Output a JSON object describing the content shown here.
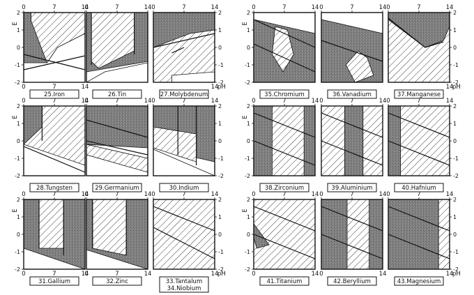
{
  "axis_text": {
    "e": "E",
    "ph": "pH"
  },
  "panels": [
    {
      "id": "25",
      "label": "25.Iron",
      "top_ticks": [
        "0",
        "7",
        "14"
      ],
      "bottom_ticks": [
        "0",
        "7",
        "14"
      ],
      "left_ticks": [
        "2",
        "1",
        "0",
        "-1",
        "-2"
      ],
      "right_ticks": [],
      "show_e": true,
      "show_ph": false
    },
    {
      "id": "26",
      "label": "26.Tin",
      "top_ticks": [
        "0",
        "7",
        "14"
      ],
      "bottom_ticks": [],
      "left_ticks": [],
      "right_ticks": [],
      "show_e": false,
      "show_ph": false
    },
    {
      "id": "27",
      "label": "27.Molybdenum",
      "top_ticks": [
        "0",
        "7",
        "14"
      ],
      "bottom_ticks": [
        "14"
      ],
      "left_ticks": [],
      "right_ticks": [
        "2",
        "1",
        "0",
        "-1",
        "-2"
      ],
      "show_e": false,
      "show_ph": true
    },
    {
      "id": "35",
      "label": "35.Chromium",
      "top_ticks": [
        "0",
        "7",
        "14"
      ],
      "bottom_ticks": [],
      "left_ticks": [
        "2",
        "1",
        "0",
        "-1",
        "-2"
      ],
      "right_ticks": [],
      "show_e": true,
      "show_ph": false
    },
    {
      "id": "36",
      "label": "36.Vanadium",
      "top_ticks": [
        "0",
        "7",
        "14"
      ],
      "bottom_ticks": [],
      "left_ticks": [],
      "right_ticks": [],
      "show_e": false,
      "show_ph": false
    },
    {
      "id": "37",
      "label": "37.Manganese",
      "top_ticks": [
        "0",
        "7",
        "14"
      ],
      "bottom_ticks": [
        "14"
      ],
      "left_ticks": [],
      "right_ticks": [
        "2",
        "1",
        "0",
        "-1",
        "-2"
      ],
      "show_e": false,
      "show_ph": true
    },
    {
      "id": "28",
      "label": "28.Tungsten",
      "top_ticks": [
        "0",
        "7",
        "14"
      ],
      "bottom_ticks": [],
      "left_ticks": [
        "2",
        "1",
        "0",
        "-1",
        "-2"
      ],
      "right_ticks": [],
      "show_e": true,
      "show_ph": false
    },
    {
      "id": "29",
      "label": "29.Germanium",
      "top_ticks": [
        "0",
        "7",
        "14"
      ],
      "bottom_ticks": [],
      "left_ticks": [],
      "right_ticks": [],
      "show_e": false,
      "show_ph": false
    },
    {
      "id": "30",
      "label": "30.Indium",
      "top_ticks": [
        "0",
        "7",
        "14"
      ],
      "bottom_ticks": [],
      "left_ticks": [],
      "right_ticks": [
        "2",
        "1",
        "0",
        "-1",
        "-2"
      ],
      "show_e": false,
      "show_ph": false
    },
    {
      "id": "38",
      "label": "38.Zirconium",
      "top_ticks": [
        "0",
        "7",
        "14"
      ],
      "bottom_ticks": [],
      "left_ticks": [
        "2",
        "1",
        "0",
        "-1",
        "-2"
      ],
      "right_ticks": [],
      "show_e": true,
      "show_ph": false
    },
    {
      "id": "39",
      "label": "39.Aluminium",
      "top_ticks": [
        "0",
        "7",
        "14"
      ],
      "bottom_ticks": [],
      "left_ticks": [],
      "right_ticks": [],
      "show_e": false,
      "show_ph": false
    },
    {
      "id": "40",
      "label": "40.Hafnium",
      "top_ticks": [
        "0",
        "7",
        "14"
      ],
      "bottom_ticks": [],
      "left_ticks": [],
      "right_ticks": [
        "2",
        "1",
        "0",
        "-1",
        "-2"
      ],
      "show_e": false,
      "show_ph": false
    },
    {
      "id": "31",
      "label": "31.Gallium",
      "top_ticks": [
        "0",
        "7",
        "14"
      ],
      "bottom_ticks": [
        "0",
        "7",
        "14"
      ],
      "left_ticks": [
        "2",
        "1",
        "0",
        "-1",
        "-2"
      ],
      "right_ticks": [],
      "show_e": true,
      "show_ph": false
    },
    {
      "id": "32",
      "label": "32.Zinc",
      "top_ticks": [
        "0",
        "7",
        "14"
      ],
      "bottom_ticks": [
        "0",
        "7",
        "14"
      ],
      "left_ticks": [],
      "right_ticks": [],
      "show_e": false,
      "show_ph": false
    },
    {
      "id": "33",
      "label": "33.Tantalum\n34.Niobium",
      "top_ticks": [
        "0",
        "7",
        "14"
      ],
      "bottom_ticks": [
        "14"
      ],
      "left_ticks": [],
      "right_ticks": [
        "2",
        "1",
        "0",
        "-1",
        "-2"
      ],
      "show_e": false,
      "show_ph": true
    },
    {
      "id": "41",
      "label": "41.Titanium",
      "top_ticks": [
        "0",
        "7",
        "14"
      ],
      "bottom_ticks": [
        "0",
        "14"
      ],
      "left_ticks": [
        "2",
        "1",
        "0",
        "-1",
        "-2"
      ],
      "right_ticks": [],
      "show_e": true,
      "show_ph": false
    },
    {
      "id": "42",
      "label": "42.Beryllium",
      "top_ticks": [
        "0",
        "7",
        "14"
      ],
      "bottom_ticks": [
        "0",
        "14"
      ],
      "left_ticks": [],
      "right_ticks": [],
      "show_e": false,
      "show_ph": false
    },
    {
      "id": "43",
      "label": "43.Magnesium",
      "top_ticks": [
        "0",
        "7",
        "14"
      ],
      "bottom_ticks": [
        "14"
      ],
      "left_ticks": [],
      "right_ticks": [
        "2",
        "1",
        "0",
        "-1",
        "-2"
      ],
      "show_e": false,
      "show_ph": true
    }
  ]
}
